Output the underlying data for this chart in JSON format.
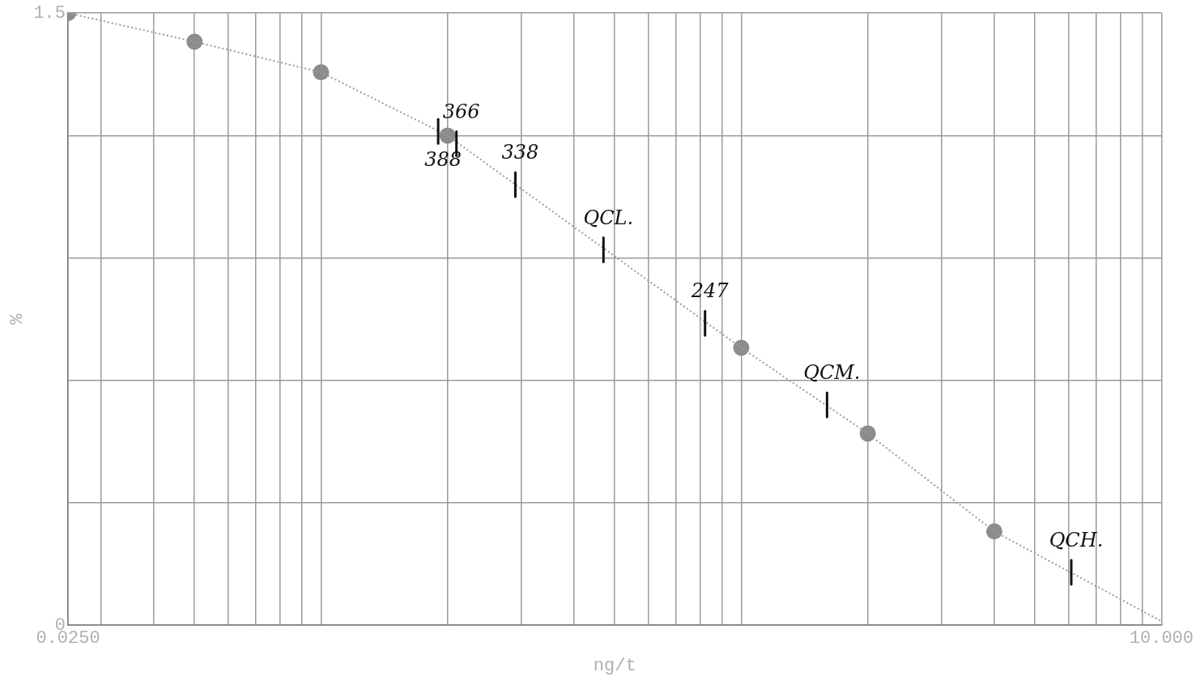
{
  "chart_data": {
    "type": "scatter",
    "xlabel": "ng/t",
    "ylabel": "%",
    "log": "x",
    "grid": true,
    "legend": false,
    "xlim": [
      0.025,
      10
    ],
    "ylim": [
      0,
      1.5
    ],
    "xticks": [
      {
        "value": 0.025,
        "label": "0.0250"
      },
      {
        "value": 0.03,
        "label": null
      },
      {
        "value": 0.04,
        "label": null
      },
      {
        "value": 0.05,
        "label": null
      },
      {
        "value": 0.06,
        "label": null
      },
      {
        "value": 0.07,
        "label": null
      },
      {
        "value": 0.08,
        "label": null
      },
      {
        "value": 0.09,
        "label": null
      },
      {
        "value": 0.1,
        "label": null
      },
      {
        "value": 0.2,
        "label": null
      },
      {
        "value": 0.3,
        "label": null
      },
      {
        "value": 0.4,
        "label": null
      },
      {
        "value": 0.5,
        "label": null
      },
      {
        "value": 0.6,
        "label": null
      },
      {
        "value": 0.7,
        "label": null
      },
      {
        "value": 0.8,
        "label": null
      },
      {
        "value": 0.9,
        "label": null
      },
      {
        "value": 1,
        "label": null
      },
      {
        "value": 2,
        "label": null
      },
      {
        "value": 3,
        "label": null
      },
      {
        "value": 4,
        "label": null
      },
      {
        "value": 5,
        "label": null
      },
      {
        "value": 6,
        "label": null
      },
      {
        "value": 7,
        "label": null
      },
      {
        "value": 8,
        "label": null
      },
      {
        "value": 9,
        "label": null
      },
      {
        "value": 10,
        "label": "10.000"
      }
    ],
    "yticks": [
      {
        "value": 0,
        "label": "0"
      },
      {
        "value": 0.3,
        "label": null
      },
      {
        "value": 0.6,
        "label": null
      },
      {
        "value": 0.9,
        "label": null
      },
      {
        "value": 1.2,
        "label": null
      },
      {
        "value": 1.5,
        "label": "1.5"
      }
    ],
    "series": [
      {
        "type": "line",
        "color": "#9a9a9a",
        "marker": "none",
        "line_style": "dotted",
        "x": [
          0.025,
          0.05,
          0.1,
          0.2,
          1,
          2,
          4,
          10
        ],
        "values": [
          1.5,
          1.43,
          1.355,
          1.2,
          0.68,
          0.47,
          0.23,
          0.01
        ]
      },
      {
        "type": "scatter",
        "color": "#8c8c8c",
        "marker": "circle",
        "x": [
          0.025,
          0.05,
          0.1,
          0.2,
          1,
          2,
          4
        ],
        "values": [
          1.5,
          1.43,
          1.355,
          1.2,
          0.68,
          0.47,
          0.23
        ]
      }
    ],
    "annotations": [
      {
        "text": "366",
        "x": 0.21,
        "y": 1.18
      },
      {
        "text": "388",
        "x": 0.19,
        "y": 1.21
      },
      {
        "text": "338",
        "x": 0.29,
        "y": 1.08
      },
      {
        "text": "QCL.",
        "x": 0.47,
        "y": 0.92
      },
      {
        "text": "247",
        "x": 0.82,
        "y": 0.74
      },
      {
        "text": "QCM.",
        "x": 1.6,
        "y": 0.54
      },
      {
        "text": "QCH.",
        "x": 6.1,
        "y": 0.13
      }
    ]
  }
}
